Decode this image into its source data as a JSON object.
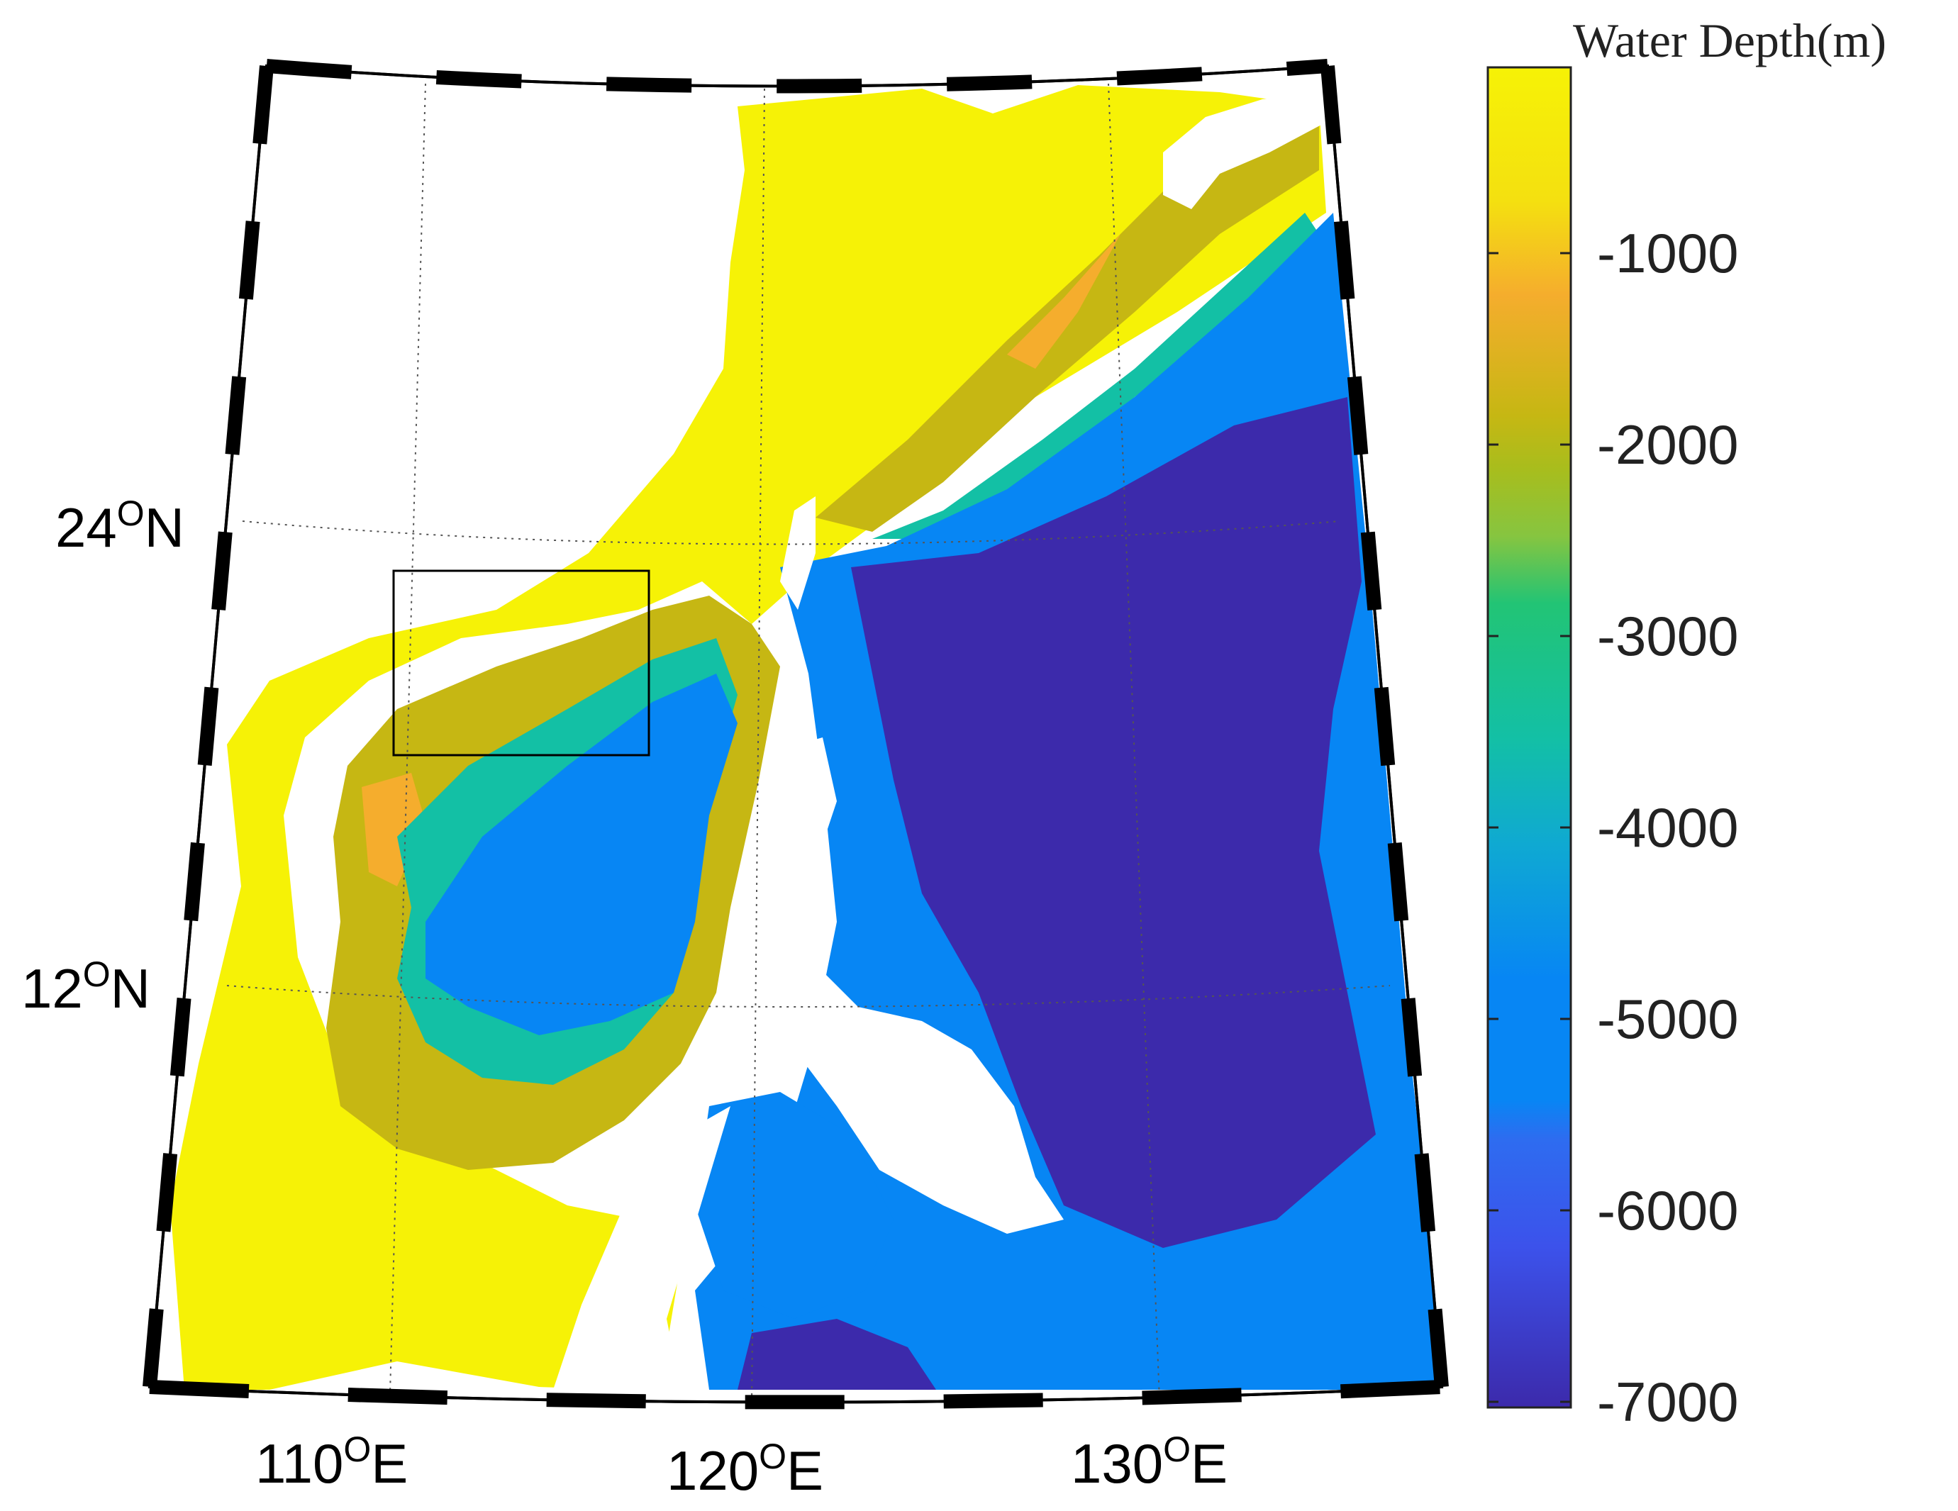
{
  "map": {
    "latitude_labels": [
      {
        "value": "24",
        "suffix": "N"
      },
      {
        "value": "12",
        "suffix": "N"
      }
    ],
    "longitude_labels": [
      {
        "value": "110",
        "suffix": "E"
      },
      {
        "value": "120",
        "suffix": "E"
      },
      {
        "value": "130",
        "suffix": "E"
      }
    ],
    "degree_symbol": "O",
    "land_color": "#ffffff",
    "gridline_style": "dotted"
  },
  "colorbar": {
    "title": "Water Depth(m)",
    "ticks": [
      "-1000",
      "-2000",
      "-3000",
      "-4000",
      "-5000",
      "-6000",
      "-7000"
    ],
    "range": [
      -7000,
      0
    ],
    "colors": {
      "shallow": "#f6f206",
      "d1000": "#f5ad2d",
      "d1500": "#c6b713",
      "d2000": "#86c540",
      "d2500": "#22c475",
      "d3000": "#13c0a5",
      "d4000": "#0d9be0",
      "d5000": "#0786f4",
      "d6000": "#3c52eb",
      "d7000": "#3c2aab"
    }
  }
}
